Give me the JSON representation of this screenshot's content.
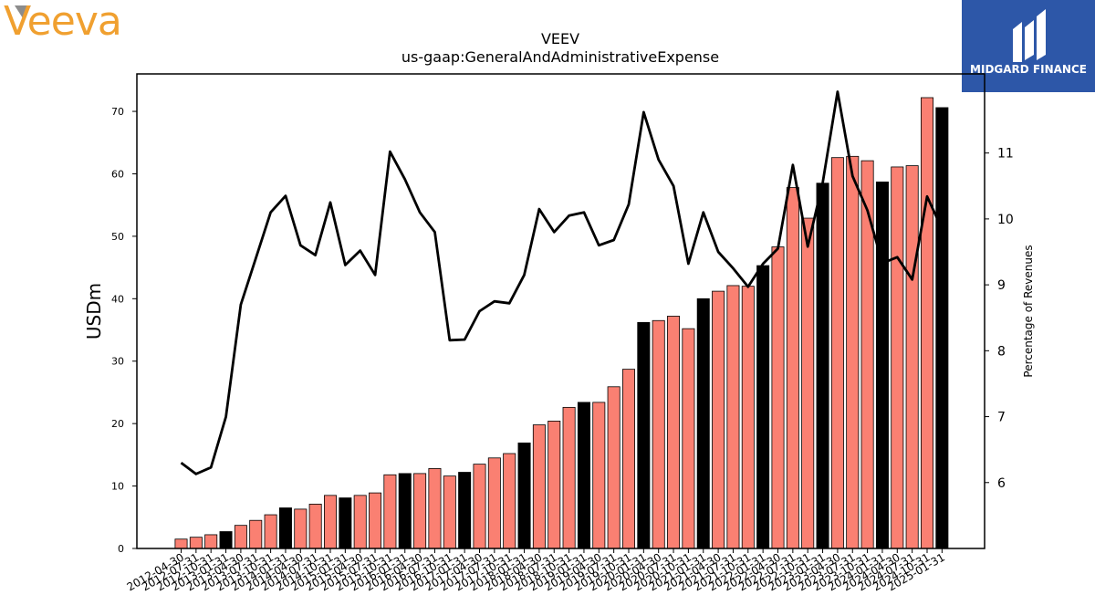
{
  "branding": {
    "company_logo_text": "Veeva",
    "provider_name": "MIDGARD FINANCE",
    "colors": {
      "veeva_orange": "#f0a030",
      "midgard_blue": "#2d57a8"
    }
  },
  "chart_data": {
    "type": "bar",
    "title": "VEEV",
    "subtitle": "us-gaap:GeneralAndAdministrativeExpense",
    "ylabel": "USDm",
    "y2label": "Percentage of Revenues",
    "ylim": [
      0,
      76
    ],
    "y2lim": [
      5.0,
      12.2
    ],
    "yticks": [
      0,
      10,
      20,
      30,
      40,
      50,
      60,
      70
    ],
    "y2ticks": [
      6,
      7,
      8,
      9,
      10,
      11
    ],
    "grid": false,
    "colors": {
      "quarter_bar": "#fa8072",
      "fiscal_year_end_bar": "#000000",
      "ratio_line": "#000000"
    },
    "categories": [
      "2012-04-30",
      "2012-07-31",
      "2012-10-31",
      "2013-01-31",
      "2013-04-30",
      "2013-07-31",
      "2013-10-31",
      "2014-01-31",
      "2014-04-30",
      "2014-07-31",
      "2014-10-31",
      "2015-01-31",
      "2015-04-30",
      "2015-07-31",
      "2015-10-31",
      "2016-01-31",
      "2016-04-30",
      "2016-07-31",
      "2016-10-31",
      "2017-01-31",
      "2017-04-30",
      "2017-07-31",
      "2017-10-31",
      "2018-01-31",
      "2018-04-30",
      "2018-07-31",
      "2018-10-31",
      "2019-01-31",
      "2019-04-30",
      "2019-07-31",
      "2019-10-31",
      "2020-01-31",
      "2020-04-30",
      "2020-07-31",
      "2020-10-31",
      "2021-01-31",
      "2021-04-30",
      "2021-07-31",
      "2021-10-31",
      "2022-01-31",
      "2022-04-30",
      "2022-07-31",
      "2022-10-31",
      "2023-01-31",
      "2023-04-30",
      "2023-07-31",
      "2023-10-31",
      "2024-01-31",
      "2024-04-30",
      "2024-07-31",
      "2024-10-31",
      "2025-01-31"
    ],
    "series": [
      {
        "type": "bar",
        "values": [
          1.5,
          1.8,
          2.2,
          2.7,
          3.7,
          4.5,
          5.4,
          6.5,
          6.3,
          7.1,
          8.5,
          8.1,
          8.5,
          8.9,
          11.8,
          12.0,
          12.0,
          12.8,
          11.6,
          12.2,
          13.5,
          14.5,
          15.2,
          16.9,
          19.8,
          20.4,
          22.6,
          23.4,
          23.4,
          25.9,
          28.7,
          36.2,
          36.5,
          37.2,
          35.2,
          40.0,
          41.2,
          42.1,
          42.0,
          45.3,
          48.3,
          57.8,
          52.9,
          58.5,
          62.6,
          62.8,
          62.1,
          58.7,
          61.1,
          61.3,
          72.2,
          70.6
        ],
        "fiscal_year_end": [
          false,
          false,
          false,
          true,
          false,
          false,
          false,
          true,
          false,
          false,
          false,
          true,
          false,
          false,
          false,
          true,
          false,
          false,
          false,
          true,
          false,
          false,
          false,
          true,
          false,
          false,
          false,
          true,
          false,
          false,
          false,
          true,
          false,
          false,
          false,
          true,
          false,
          false,
          false,
          true,
          false,
          false,
          false,
          true,
          false,
          false,
          false,
          true,
          false,
          false,
          false,
          true
        ]
      },
      {
        "type": "line",
        "axis": "right",
        "values": [
          6.3,
          6.13,
          6.23,
          7.0,
          8.7,
          9.4,
          10.1,
          10.35,
          9.6,
          9.45,
          10.25,
          9.3,
          9.52,
          9.15,
          11.02,
          10.6,
          10.1,
          9.8,
          8.16,
          8.17,
          8.6,
          8.75,
          8.72,
          9.15,
          10.15,
          9.8,
          10.05,
          10.1,
          9.6,
          9.68,
          10.22,
          11.62,
          10.9,
          10.5,
          9.32,
          10.1,
          9.5,
          9.25,
          8.97,
          9.32,
          9.55,
          10.82,
          9.58,
          10.55,
          11.93,
          10.65,
          10.13,
          9.33,
          9.42,
          9.08,
          10.34,
          9.85
        ]
      }
    ]
  }
}
